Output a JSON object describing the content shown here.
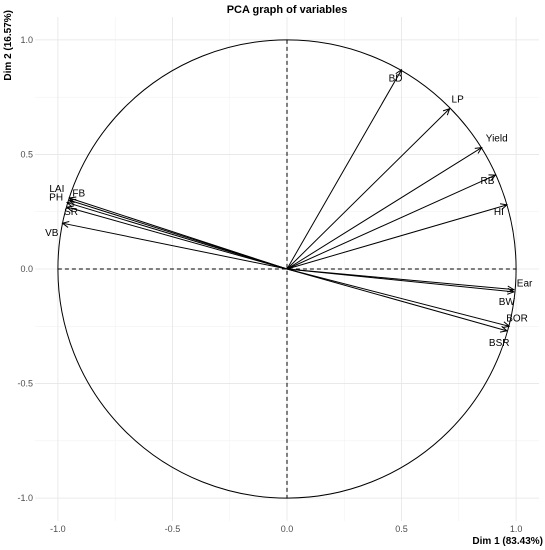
{
  "chart_data": {
    "type": "scatter",
    "title": "PCA graph of variables",
    "xlabel": "Dim 1 (83.43%)",
    "ylabel": "Dim 2 (16.57%)",
    "xlim": [
      -1.1,
      1.1
    ],
    "ylim": [
      -1.1,
      1.1
    ],
    "xticks": [
      -1.0,
      -0.5,
      0.0,
      0.5,
      1.0
    ],
    "yticks": [
      -1.0,
      -0.5,
      0.0,
      0.5,
      1.0
    ],
    "xtick_labels": [
      "-1.0",
      "-0.5",
      "0.0",
      "0.5",
      "1.0"
    ],
    "ytick_labels": [
      "-1.0",
      "-0.5",
      "0.0",
      "0.5",
      "1.0"
    ],
    "grid": true,
    "correlation_circle": true,
    "variables": [
      {
        "name": "BD",
        "x": 0.5,
        "y": 0.87
      },
      {
        "name": "LP",
        "x": 0.71,
        "y": 0.7
      },
      {
        "name": "Yield",
        "x": 0.85,
        "y": 0.53
      },
      {
        "name": "RB",
        "x": 0.91,
        "y": 0.41
      },
      {
        "name": "HI",
        "x": 0.96,
        "y": 0.28
      },
      {
        "name": "Ear",
        "x": 0.99,
        "y": -0.09
      },
      {
        "name": "BW",
        "x": 0.99,
        "y": -0.1
      },
      {
        "name": "BOR",
        "x": 0.97,
        "y": -0.25
      },
      {
        "name": "BSR",
        "x": 0.96,
        "y": -0.27
      },
      {
        "name": "LAI",
        "x": -0.95,
        "y": 0.31
      },
      {
        "name": "FB",
        "x": -0.95,
        "y": 0.3
      },
      {
        "name": "PH",
        "x": -0.96,
        "y": 0.29
      },
      {
        "name": "SR",
        "x": -0.96,
        "y": 0.27
      },
      {
        "name": "VB",
        "x": -0.98,
        "y": 0.2
      }
    ]
  }
}
